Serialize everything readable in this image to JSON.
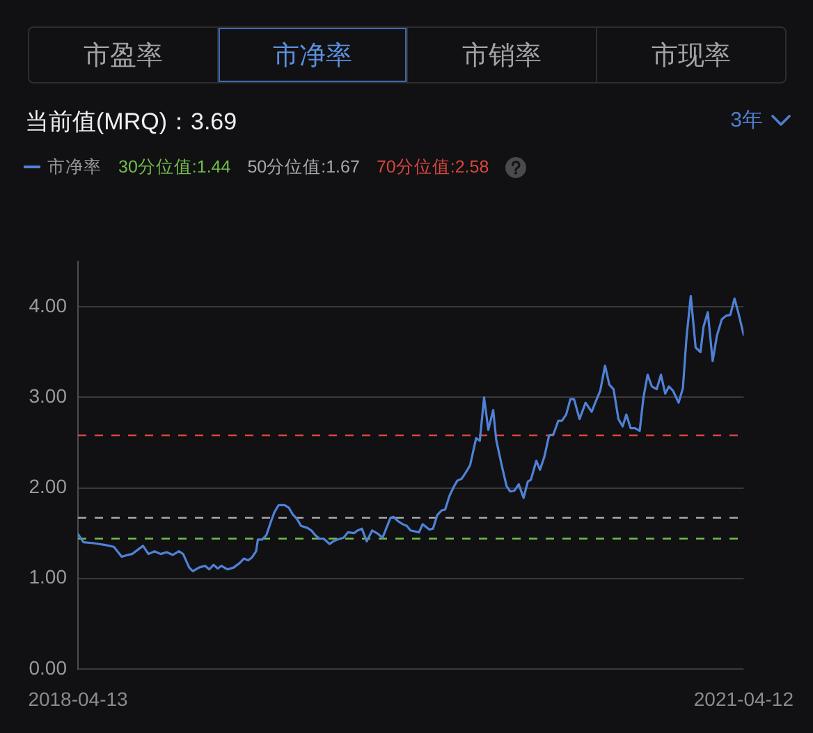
{
  "chart_data": {
    "type": "line",
    "title": "当前值(MRQ)：3.69",
    "annotations": [
      "市盈率",
      "市净率",
      "市销率",
      "市现率",
      "3年"
    ],
    "x": [
      "2018-04-13",
      "2018-04-22",
      "2018-05-08",
      "2018-05-28",
      "2018-06-11",
      "2018-06-24",
      "2018-07-04",
      "2018-07-11",
      "2018-07-21",
      "2018-07-29",
      "2018-08-07",
      "2018-08-17",
      "2018-08-27",
      "2018-09-06",
      "2018-09-16",
      "2018-09-26",
      "2018-10-03",
      "2018-10-13",
      "2018-10-19",
      "2018-10-29",
      "2018-11-08",
      "2018-11-15",
      "2018-11-22",
      "2018-11-29",
      "2018-12-05",
      "2018-12-15",
      "2018-12-25",
      "2019-01-04",
      "2019-01-11",
      "2019-01-18",
      "2019-01-24",
      "2019-01-31",
      "2019-02-03",
      "2019-02-10",
      "2019-02-17",
      "2019-02-23",
      "2019-03-02",
      "2019-03-09",
      "2019-03-19",
      "2019-03-26",
      "2019-04-01",
      "2019-04-08",
      "2019-04-15",
      "2019-04-25",
      "2019-05-02",
      "2019-05-08",
      "2019-05-15",
      "2019-05-22",
      "2019-06-01",
      "2019-06-07",
      "2019-06-14",
      "2019-06-24",
      "2019-07-01",
      "2019-07-11",
      "2019-07-17",
      "2019-07-24",
      "2019-08-01",
      "2019-08-10",
      "2019-08-20",
      "2019-08-27",
      "2019-09-02",
      "2019-09-09",
      "2019-09-14",
      "2019-09-22",
      "2019-09-29",
      "2019-10-06",
      "2019-10-12",
      "2019-10-26",
      "2019-11-01",
      "2019-11-12",
      "2019-11-18",
      "2019-11-25",
      "2019-12-02",
      "2019-12-08",
      "2019-12-15",
      "2019-12-22",
      "2019-12-28",
      "2020-01-04",
      "2020-01-11",
      "2020-01-18",
      "2020-01-24",
      "2020-01-28",
      "2020-02-03",
      "2020-02-10",
      "2020-02-17",
      "2020-02-25",
      "2020-03-01",
      "2020-03-11",
      "2020-03-18",
      "2020-03-24",
      "2020-03-31",
      "2020-04-07",
      "2020-04-15",
      "2020-04-22",
      "2020-04-27",
      "2020-05-06",
      "2020-05-12",
      "2020-05-19",
      "2020-05-27",
      "2020-06-03",
      "2020-06-11",
      "2020-06-17",
      "2020-06-24",
      "2020-07-01",
      "2020-07-07",
      "2020-07-16",
      "2020-07-26",
      "2020-08-05",
      "2020-08-12",
      "2020-08-19",
      "2020-08-27",
      "2020-09-03",
      "2020-09-10",
      "2020-09-18",
      "2020-09-25",
      "2020-10-01",
      "2020-10-08",
      "2020-10-15",
      "2020-10-23",
      "2020-10-29",
      "2020-11-05",
      "2020-11-12",
      "2020-11-20",
      "2020-11-27",
      "2020-12-04",
      "2020-12-10",
      "2020-12-17",
      "2020-12-26",
      "2021-01-02",
      "2021-01-08",
      "2021-01-15",
      "2021-01-23",
      "2021-01-31",
      "2021-02-05",
      "2021-02-12",
      "2021-02-20",
      "2021-02-27",
      "2021-03-07",
      "2021-03-14",
      "2021-03-21",
      "2021-03-28",
      "2021-04-03",
      "2021-04-12"
    ],
    "series": [
      {
        "name": "市净率",
        "color": "#4f82d6",
        "values": [
          1.49,
          1.4,
          1.39,
          1.37,
          1.35,
          1.24,
          1.26,
          1.27,
          1.32,
          1.36,
          1.27,
          1.3,
          1.27,
          1.29,
          1.26,
          1.3,
          1.27,
          1.12,
          1.08,
          1.12,
          1.14,
          1.1,
          1.15,
          1.11,
          1.14,
          1.1,
          1.12,
          1.17,
          1.22,
          1.2,
          1.23,
          1.3,
          1.43,
          1.43,
          1.48,
          1.6,
          1.73,
          1.81,
          1.81,
          1.78,
          1.71,
          1.66,
          1.58,
          1.56,
          1.53,
          1.48,
          1.44,
          1.44,
          1.38,
          1.41,
          1.43,
          1.45,
          1.51,
          1.5,
          1.53,
          1.55,
          1.41,
          1.53,
          1.49,
          1.45,
          1.55,
          1.67,
          1.68,
          1.63,
          1.6,
          1.58,
          1.53,
          1.51,
          1.6,
          1.54,
          1.55,
          1.7,
          1.75,
          1.76,
          1.91,
          2.01,
          2.08,
          2.1,
          2.17,
          2.25,
          2.43,
          2.55,
          2.52,
          3.0,
          2.64,
          2.86,
          2.53,
          2.22,
          2.02,
          1.96,
          1.97,
          2.04,
          1.89,
          2.07,
          2.09,
          2.3,
          2.2,
          2.34,
          2.58,
          2.59,
          2.74,
          2.74,
          2.81,
          2.98,
          2.98,
          2.76,
          2.94,
          2.84,
          2.96,
          3.07,
          3.35,
          3.14,
          3.09,
          2.76,
          2.68,
          2.81,
          2.66,
          2.66,
          2.63,
          2.99,
          3.25,
          3.12,
          3.09,
          3.25,
          3.04,
          3.12,
          3.07,
          2.94,
          3.1,
          3.66,
          4.12,
          3.55,
          3.5,
          3.78,
          3.94,
          3.4,
          3.68,
          3.86,
          3.9,
          3.91,
          4.09,
          3.94,
          3.69
        ]
      }
    ],
    "xlim": [
      "2018-04-13",
      "2021-04-12"
    ],
    "xticks": [
      "2018-04-13",
      "2021-04-12"
    ],
    "ylim": [
      0,
      4.5
    ],
    "yticks": [
      {
        "value": 0,
        "label": "0.00"
      },
      {
        "value": 1,
        "label": "1.00"
      },
      {
        "value": 2,
        "label": "2.00"
      },
      {
        "value": 3,
        "label": "3.00"
      },
      {
        "value": 4,
        "label": "4.00"
      }
    ],
    "ref_lines": [
      {
        "axis": "y",
        "value": 1.44,
        "label": "30分位值:1.44",
        "color": "#72be4c",
        "line_style": "dashed"
      },
      {
        "axis": "y",
        "value": 1.67,
        "label": "50分位值:1.67",
        "color": "#a9a9a9",
        "line_style": "dashed"
      },
      {
        "axis": "y",
        "value": 2.58,
        "label": "70分位值:2.58",
        "color": "#d8473d",
        "line_style": "dashed"
      }
    ],
    "grid": "y",
    "legend": "top left",
    "marker": "none"
  }
}
